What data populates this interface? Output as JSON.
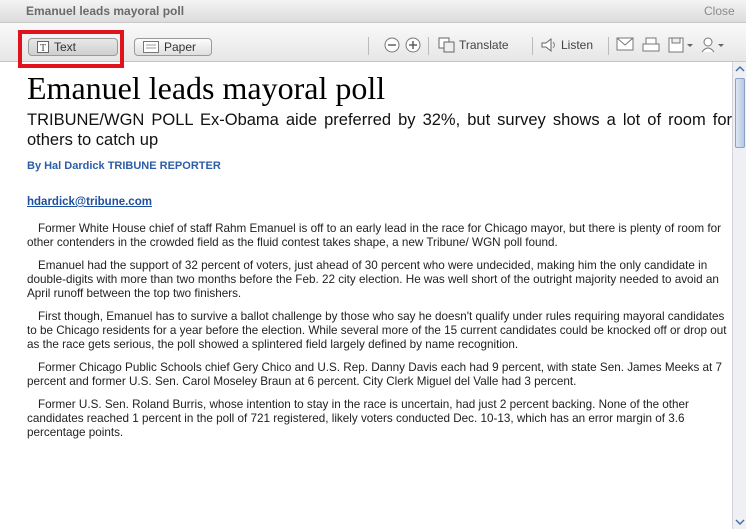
{
  "window": {
    "title": "Emanuel leads mayoral poll",
    "close": "Close"
  },
  "toolbar": {
    "text": "Text",
    "paper": "Paper",
    "translate": "Translate",
    "listen": "Listen"
  },
  "article": {
    "headline": "Emanuel leads mayoral poll",
    "subheadline": "TRIBUNE/WGN POLL Ex-Obama aide preferred by 32%, but survey shows a lot of room for others to catch up",
    "byline": "By Hal Dardick TRIBUNE REPORTER",
    "email": "hdardick@tribune.com",
    "paragraphs": [
      "Former White House chief of staff Rahm Emanuel is off to an early lead in the race for Chicago mayor, but there is plenty of room for other contenders in the crowded field as the fluid contest takes shape, a new Tribune/ WGN poll found.",
      "Emanuel had the support of 32 percent of voters, just ahead of 30 percent who were undecided, making him the only candidate in double-digits with more than two months before the Feb. 22 city election. He was well short of the outright majority needed to avoid an April runoff between the top two finishers.",
      "First though, Emanuel has to survive a ballot challenge by those who say he doesn't qualify under rules requiring mayoral candidates to be Chicago residents for a year before the election. While several more of the 15 current candidates could be knocked off or drop out as the race gets serious, the poll showed a splintered field largely defined by name recognition.",
      "Former Chicago Public Schools chief Gery Chico and U.S. Rep. Danny Davis each had 9 percent, with state Sen. James Meeks at 7 percent and former U.S. Sen. Carol Moseley Braun at 6 percent. City Clerk Miguel del Valle had 3 percent.",
      "Former U.S. Sen. Roland Burris, whose intention to stay in the race is uncertain, had just 2 percent backing. None of the other candidates reached 1 percent in the poll of 721 registered, likely voters conducted Dec. 10-13, which has an error margin of 3.6 percentage points."
    ]
  }
}
